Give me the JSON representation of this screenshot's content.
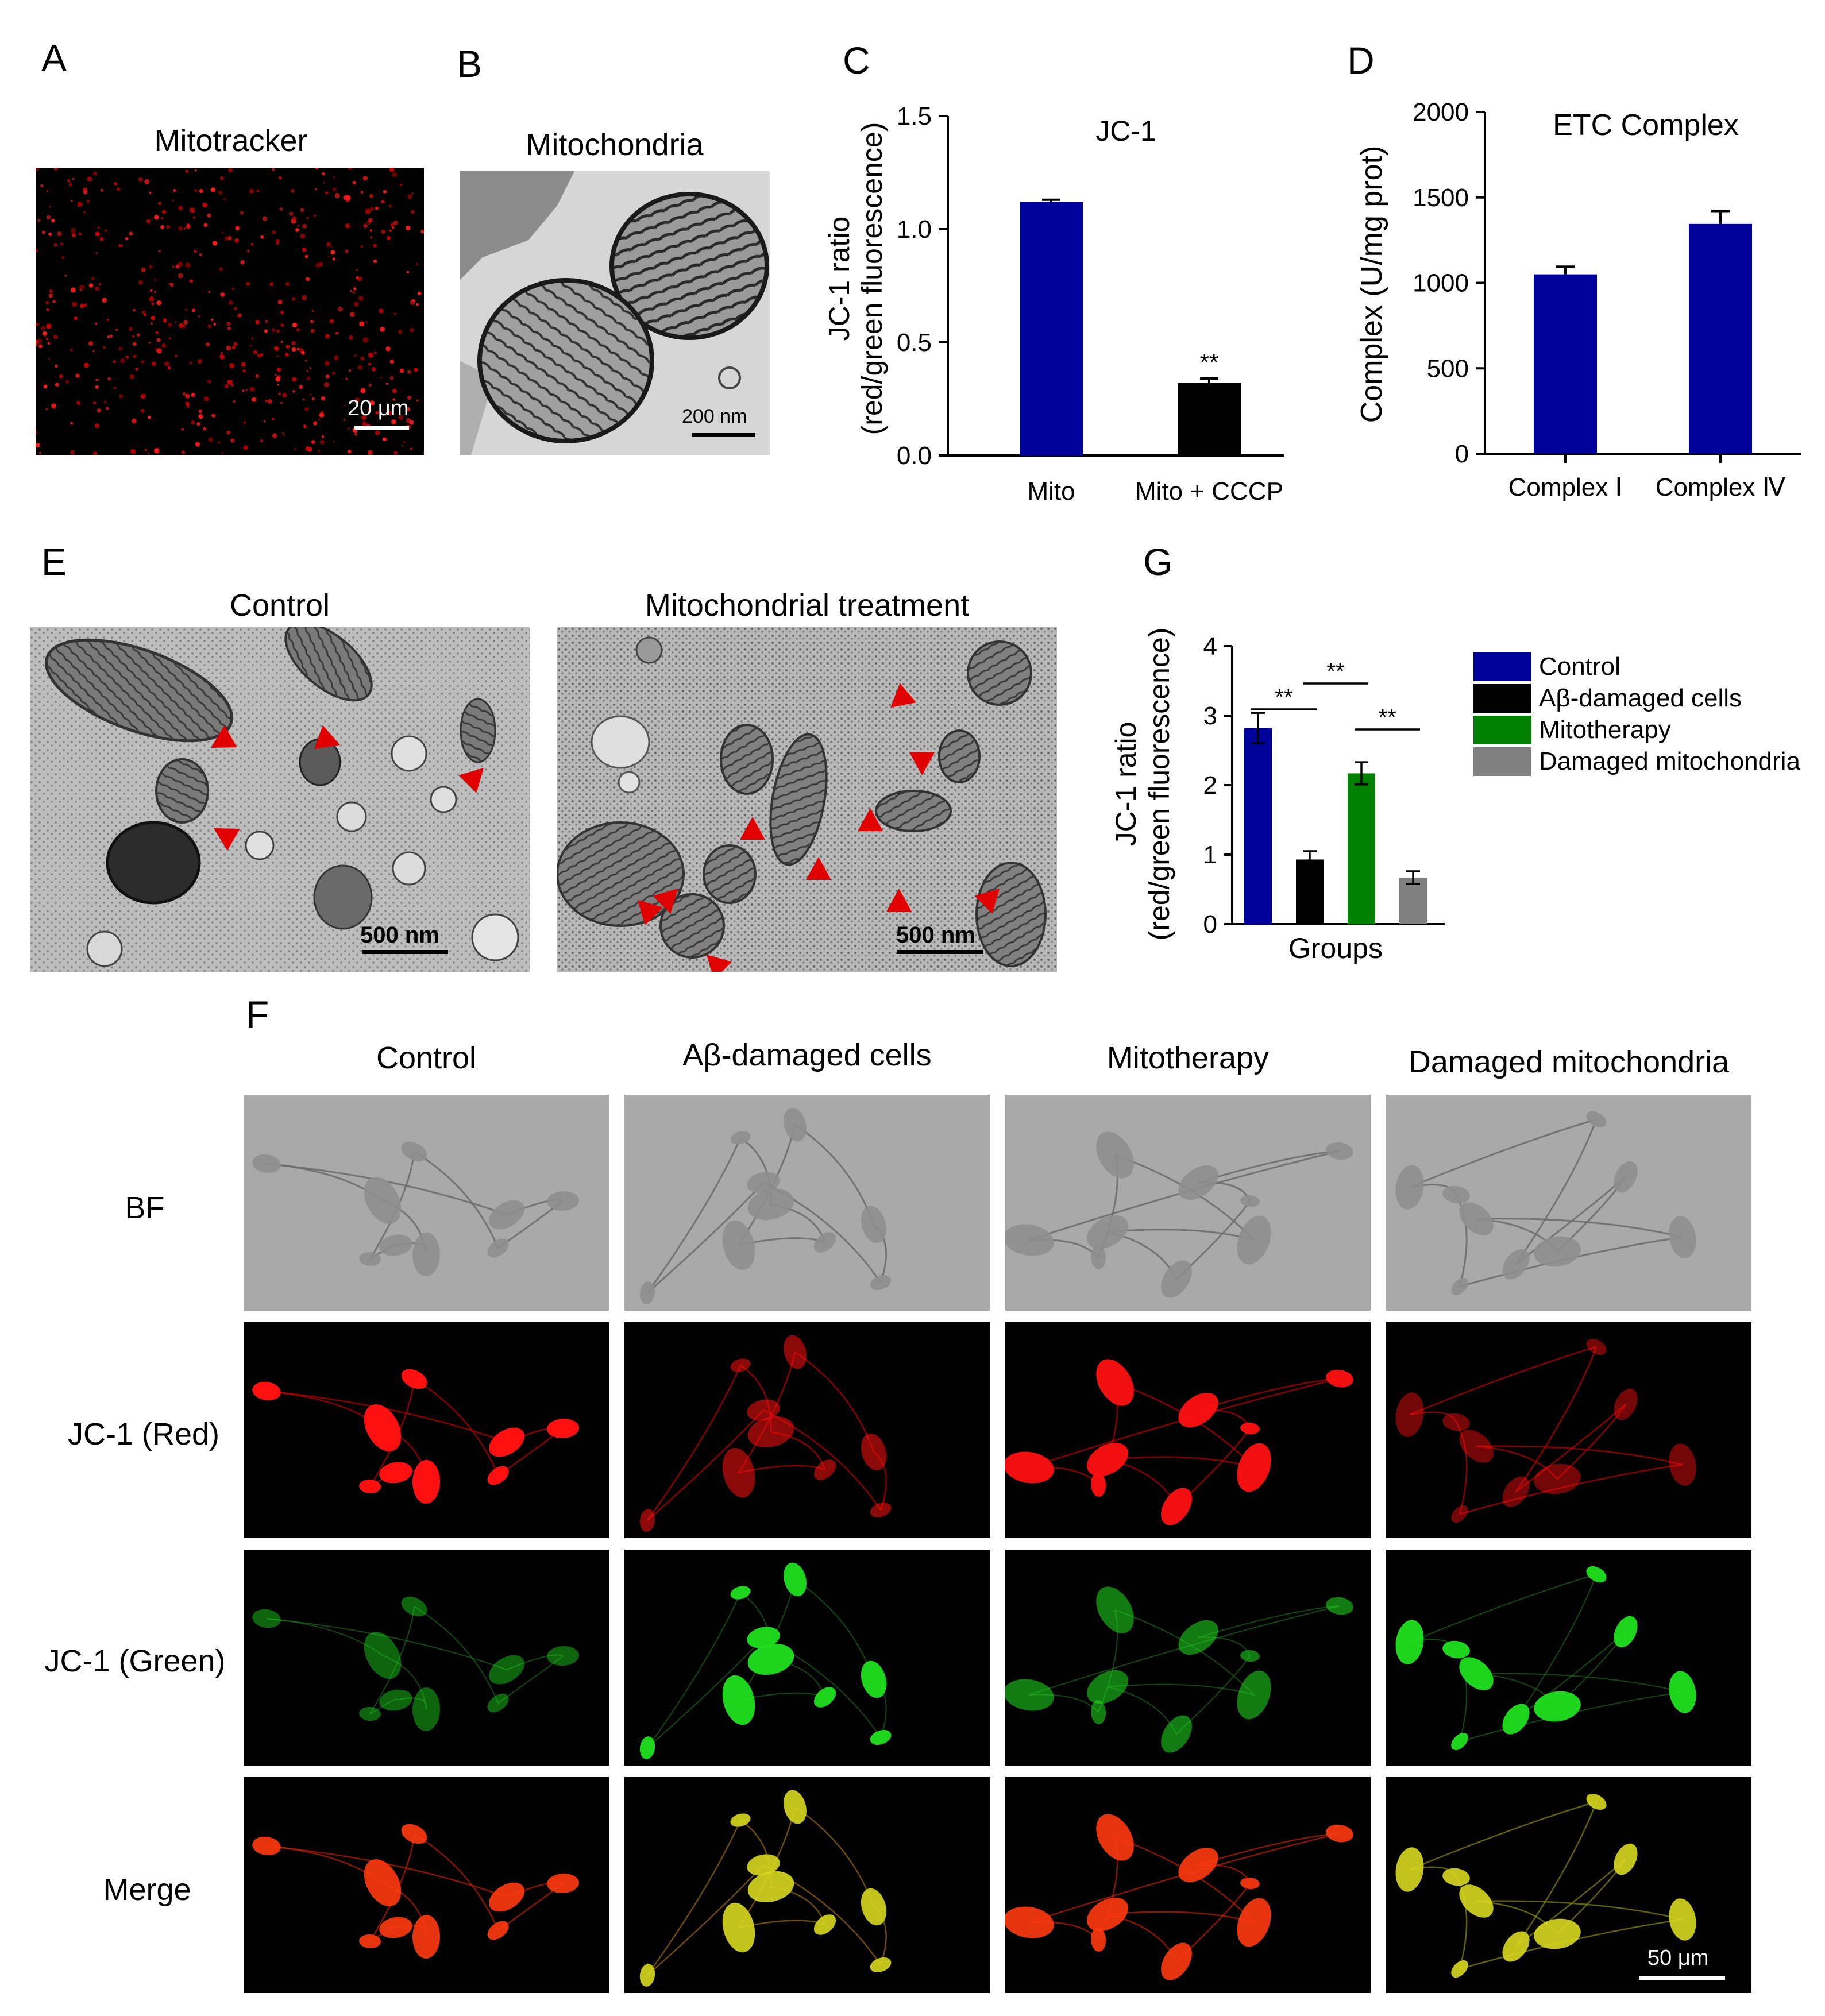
{
  "panels": {
    "A": {
      "letter": "A",
      "title": "Mitotracker",
      "scale": "20 μm"
    },
    "B": {
      "letter": "B",
      "title": "Mitochondria",
      "scale": "200 nm"
    },
    "C": {
      "letter": "C"
    },
    "D": {
      "letter": "D"
    },
    "E": {
      "letter": "E",
      "titles": [
        "Control",
        "Mitochondrial treatment"
      ],
      "scale": "500 nm"
    },
    "F": {
      "letter": "F",
      "columns": [
        "Control",
        "Aβ-damaged cells",
        "Mitotherapy",
        "Damaged mitochondria"
      ],
      "rows": [
        "BF",
        "JC-1 (Red)",
        "JC-1 (Green)",
        "Merge"
      ],
      "scale": "50 μm"
    },
    "G": {
      "letter": "G"
    }
  },
  "colors": {
    "blue": "#00009a",
    "black": "#000000",
    "green": "#008000",
    "gray": "#808080",
    "red_arrow": "#e00000"
  },
  "chart_data": [
    {
      "id": "C",
      "type": "bar",
      "title": "JC-1",
      "ylabel_line1": "JC-1 ratio",
      "ylabel_line2": "(red/green fluorescence)",
      "categories": [
        "Mito",
        "Mito + CCCP"
      ],
      "values": [
        1.12,
        0.32
      ],
      "errors": [
        0.01,
        0.02
      ],
      "colors": [
        "#00009a",
        "#000000"
      ],
      "ylim": [
        0,
        1.5
      ],
      "yticks": [
        "0.0",
        "0.5",
        "1.0",
        "1.5"
      ],
      "annotations": [
        {
          "category": "Mito + CCCP",
          "text": "**"
        }
      ]
    },
    {
      "id": "D",
      "type": "bar",
      "title": "ETC Complex",
      "ylabel": "Complex (U/mg prot)",
      "categories": [
        "Complex Ⅰ",
        "Complex Ⅳ"
      ],
      "values": [
        1050,
        1345
      ],
      "errors": [
        45,
        75
      ],
      "colors": [
        "#00009a",
        "#00009a"
      ],
      "ylim": [
        0,
        2000
      ],
      "yticks": [
        "0",
        "500",
        "1000",
        "1500",
        "2000"
      ]
    },
    {
      "id": "G",
      "type": "bar",
      "xlabel": "Groups",
      "ylabel_line1": "JC-1 ratio",
      "ylabel_line2": "(red/green fluorescence)",
      "series": [
        {
          "name": "Control",
          "value": 2.82,
          "error": 0.22,
          "color": "#00009a"
        },
        {
          "name": "Aβ-damaged cells",
          "value": 0.93,
          "error": 0.12,
          "color": "#000000"
        },
        {
          "name": "Mitotherapy",
          "value": 2.17,
          "error": 0.16,
          "color": "#008000"
        },
        {
          "name": "Damaged mitochondria",
          "value": 0.67,
          "error": 0.09,
          "color": "#808080"
        }
      ],
      "ylim": [
        0,
        4
      ],
      "yticks": [
        "0",
        "1",
        "2",
        "3",
        "4"
      ],
      "significance": [
        {
          "from": 0,
          "to": 1,
          "text": "**"
        },
        {
          "from": 1,
          "to": 2,
          "text": "**"
        },
        {
          "from": 2,
          "to": 3,
          "text": "**"
        }
      ]
    }
  ]
}
